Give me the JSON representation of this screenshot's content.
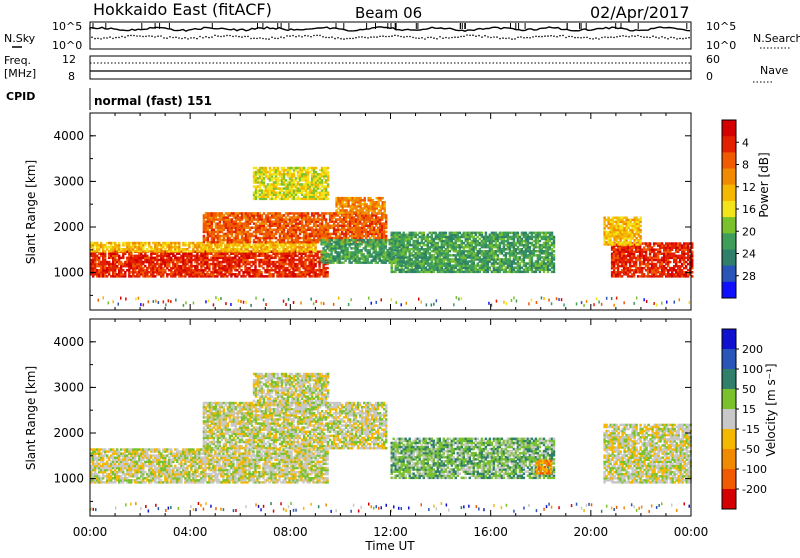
{
  "header": {
    "radar": "Hokkaido East (fitACF)",
    "beam": "Beam 06",
    "date": "02/Apr/2017"
  },
  "summary": {
    "nsky_label": "N.Sky",
    "nsearch_label": "N.Search",
    "freq_label_1": "Freq.",
    "freq_label_2": "[MHz]",
    "nave_label": "Nave",
    "cpid_label": "CPID",
    "cpid_text": "normal (fast) 151",
    "noise_left_top": "10^5",
    "noise_left_bottom": "10^0",
    "noise_right_top": "10^5",
    "noise_right_bottom": "10^0",
    "freq_left_top": "12",
    "freq_left_bottom": "8",
    "nave_right_top": "60",
    "nave_right_bottom": "0"
  },
  "chart_data": [
    {
      "type": "heatmap",
      "panel": "power",
      "ylabel": "Slant Range [km]",
      "ylim": [
        180,
        4500
      ],
      "yticks": [
        "1000",
        "2000",
        "3000",
        "4000"
      ],
      "xlim": [
        0,
        24
      ],
      "colorbar_label": "Power [dB]",
      "colorbar_ticks": [
        "4",
        "8",
        "12",
        "16",
        "20",
        "24",
        "28"
      ],
      "colors": [
        "#1010ff",
        "#2a55b8",
        "#2f7f6a",
        "#3f9e5a",
        "#79c22e",
        "#f2e31b",
        "#f5b800",
        "#f08a00",
        "#f05a00",
        "#e32100",
        "#d50000"
      ],
      "regions": [
        {
          "t0": 0.0,
          "t1": 9.5,
          "r0": 900,
          "r1": 1450,
          "level": 9
        },
        {
          "t0": 0.0,
          "t1": 9.0,
          "r0": 1450,
          "r1": 1650,
          "level": 6
        },
        {
          "t0": 4.5,
          "t1": 11.8,
          "r0": 1650,
          "r1": 2300,
          "level": 8
        },
        {
          "t0": 9.8,
          "t1": 11.8,
          "r0": 2300,
          "r1": 2650,
          "level": 7
        },
        {
          "t0": 6.5,
          "t1": 9.5,
          "r0": 2600,
          "r1": 3300,
          "level": 5
        },
        {
          "t0": 9.2,
          "t1": 12.5,
          "r0": 1200,
          "r1": 1700,
          "level": 3
        },
        {
          "t0": 12.0,
          "t1": 18.5,
          "r0": 1000,
          "r1": 1900,
          "level": 3
        },
        {
          "t0": 20.8,
          "t1": 24.0,
          "r0": 900,
          "r1": 1650,
          "level": 9
        },
        {
          "t0": 20.5,
          "t1": 22.0,
          "r0": 1600,
          "r1": 2200,
          "level": 6
        }
      ]
    },
    {
      "type": "heatmap",
      "panel": "velocity",
      "ylabel": "Slant Range [km]",
      "ylim": [
        180,
        4500
      ],
      "yticks": [
        "1000",
        "2000",
        "3000",
        "4000"
      ],
      "xlim": [
        0,
        24
      ],
      "xlabel": "Time UT",
      "xticks": [
        "00:00",
        "04:00",
        "08:00",
        "12:00",
        "16:00",
        "20:00",
        "00:00"
      ],
      "colorbar_label": "Velocity [m s⁻¹]",
      "colorbar_ticks": [
        "200",
        "100",
        "50",
        "15",
        "-15",
        "-50",
        "-100",
        "-200"
      ],
      "colors": [
        "#1010d0",
        "#2a55b8",
        "#2f7f6a",
        "#79c22e",
        "#c8c8c8",
        "#f5b800",
        "#f08a00",
        "#f05a00",
        "#d50000"
      ],
      "regions": [
        {
          "t0": 0.0,
          "t1": 9.5,
          "r0": 900,
          "r1": 1650,
          "level": 4
        },
        {
          "t0": 4.5,
          "t1": 11.8,
          "r0": 1650,
          "r1": 2650,
          "level": 4
        },
        {
          "t0": 6.5,
          "t1": 9.5,
          "r0": 2600,
          "r1": 3300,
          "level": 4
        },
        {
          "t0": 12.0,
          "t1": 18.5,
          "r0": 1000,
          "r1": 1900,
          "level": 3
        },
        {
          "t0": 17.8,
          "t1": 18.4,
          "r0": 1100,
          "r1": 1400,
          "level": 6
        },
        {
          "t0": 20.5,
          "t1": 24.0,
          "r0": 900,
          "r1": 2200,
          "level": 4
        }
      ]
    }
  ]
}
